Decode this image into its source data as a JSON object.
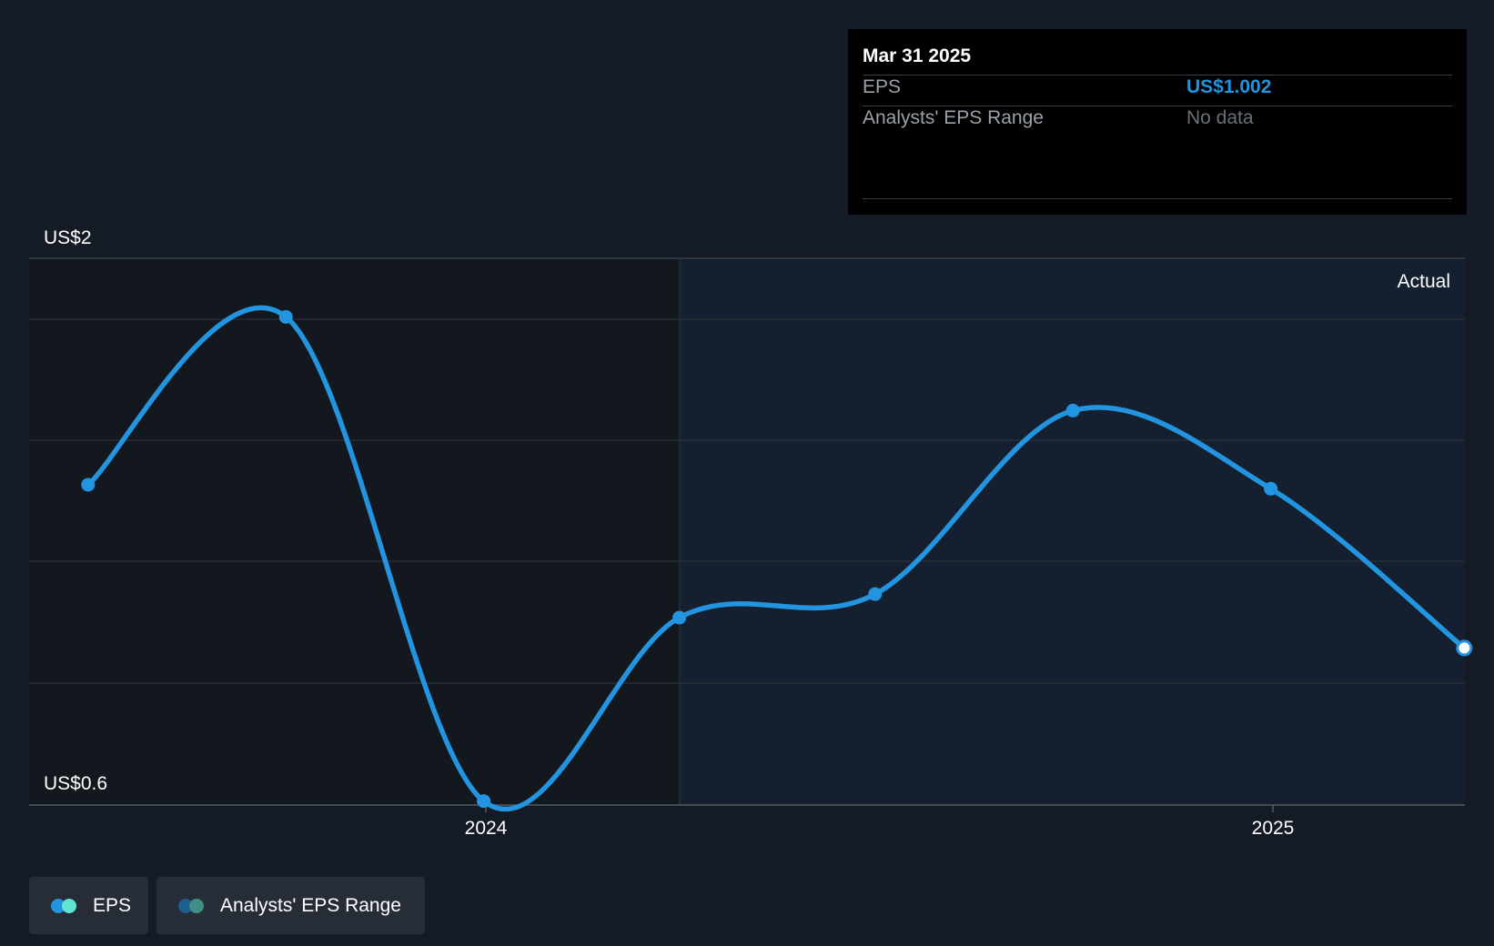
{
  "chart_data": {
    "type": "line",
    "title": "",
    "y_axis": {
      "top_label": "US$2",
      "bottom_label": "US$0.6",
      "ylim": [
        0.6,
        2.0
      ]
    },
    "x_axis": {
      "ticks": [
        "2024",
        "2025"
      ]
    },
    "region_label": "Actual",
    "series": [
      {
        "name": "EPS",
        "color": "#2394df",
        "points": [
          {
            "x": "2023-06-30",
            "y": 1.42
          },
          {
            "x": "2023-09-30",
            "y": 1.85
          },
          {
            "x": "2023-12-31",
            "y": 0.61
          },
          {
            "x": "2024-03-31",
            "y": 1.08
          },
          {
            "x": "2024-06-30",
            "y": 1.14
          },
          {
            "x": "2024-09-30",
            "y": 1.61
          },
          {
            "x": "2024-12-31",
            "y": 1.41
          },
          {
            "x": "2025-03-31",
            "y": 1.002
          }
        ]
      }
    ]
  },
  "tooltip": {
    "date": "Mar 31 2025",
    "eps_label": "EPS",
    "eps_value": "US$1.002",
    "range_label": "Analysts' EPS Range",
    "range_value": "No data"
  },
  "legend": {
    "eps_label": "EPS",
    "range_label": "Analysts' EPS Range",
    "eps_colors": [
      "#2394df",
      "#5ee6d2"
    ],
    "range_colors": [
      "#1d5f8f",
      "#3f8f86"
    ]
  }
}
